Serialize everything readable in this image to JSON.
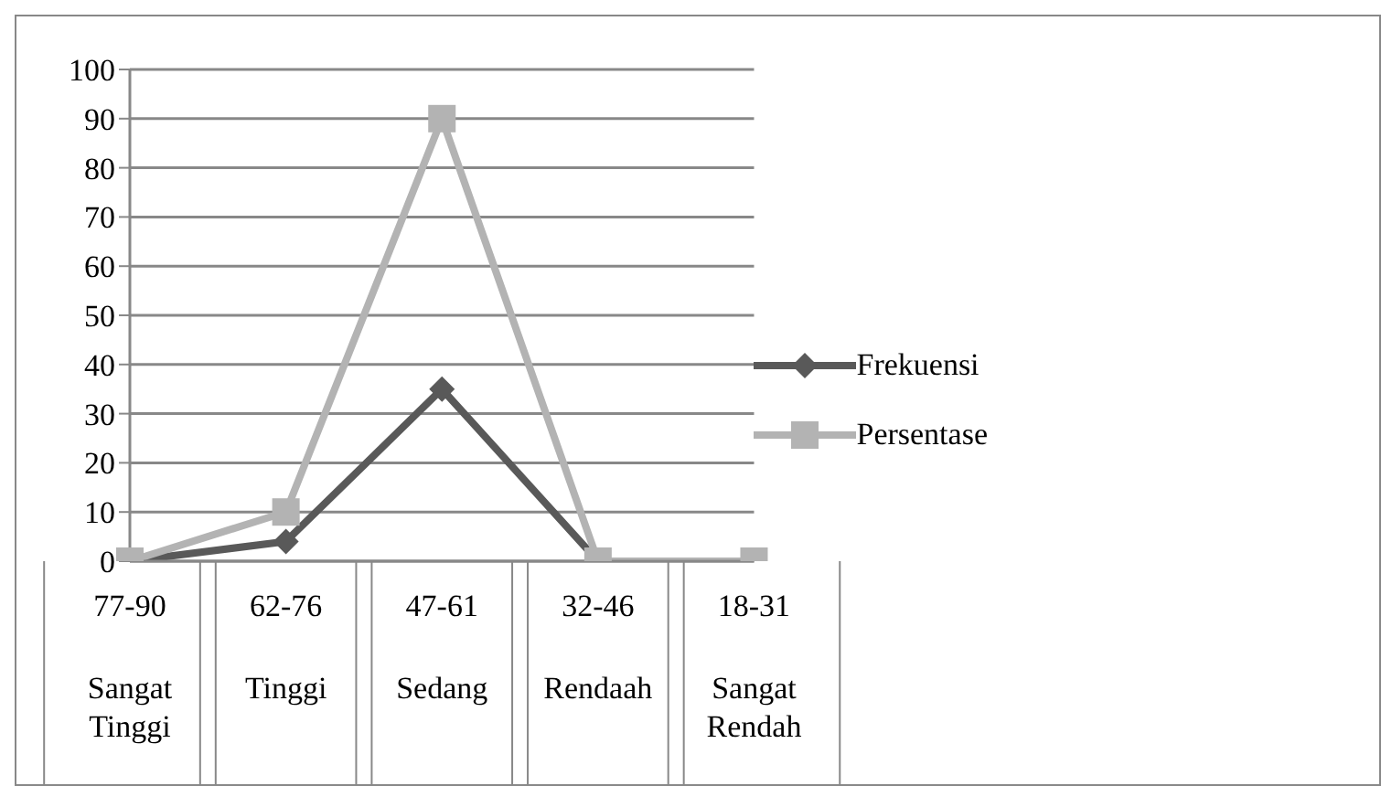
{
  "chart_data": {
    "type": "line",
    "categories": [
      "77-90\nSangat Tinggi",
      "62-76\nTinggi",
      "47-61\nSedang",
      "32-46\nRendaah",
      "18-31\nSangat Rendah"
    ],
    "series": [
      {
        "name": "Frekuensi",
        "color": "#595959",
        "marker": "diamond",
        "values": [
          0,
          4,
          35,
          0,
          null
        ]
      },
      {
        "name": "Persentase",
        "color": "#b3b3b3",
        "marker": "square",
        "values": [
          0,
          10,
          90,
          0,
          0
        ]
      }
    ],
    "ylim": [
      0,
      100
    ],
    "yticks": [
      0,
      10,
      20,
      30,
      40,
      50,
      60,
      70,
      80,
      90,
      100
    ],
    "grid": "y",
    "legend": "right",
    "line_style": "solid"
  }
}
